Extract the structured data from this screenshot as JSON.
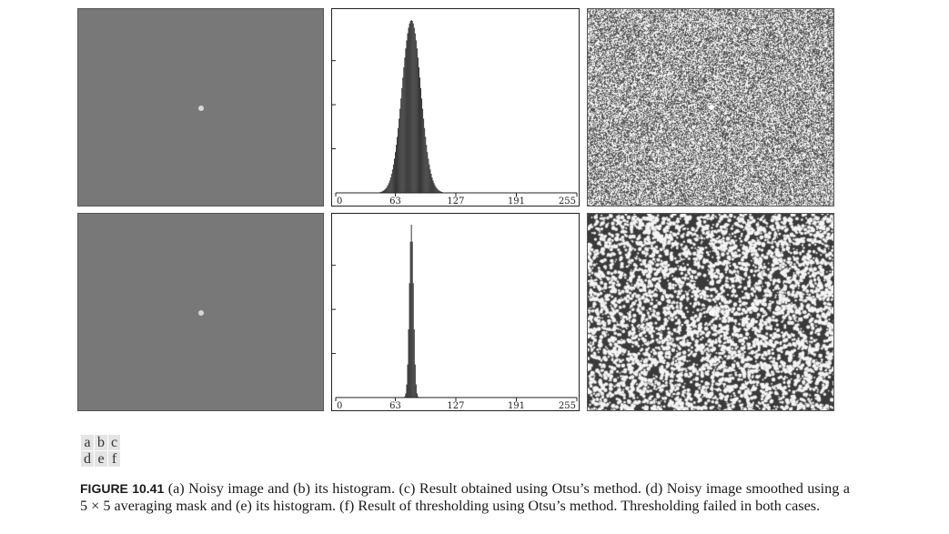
{
  "panels": {
    "a": {
      "label": "a",
      "content": "noisy image"
    },
    "b": {
      "label": "b",
      "content": "histogram of noisy image"
    },
    "c": {
      "label": "c",
      "content": "Otsu thresholding result"
    },
    "d": {
      "label": "d",
      "content": "smoothed noisy image"
    },
    "e": {
      "label": "e",
      "content": "histogram of smoothed image"
    },
    "f": {
      "label": "f",
      "content": "Otsu thresholding result on smoothed image"
    }
  },
  "layout_grid": {
    "row1": [
      "a",
      "b",
      "c"
    ],
    "row2": [
      "d",
      "e",
      "f"
    ]
  },
  "colors": {
    "image_gray": "#787878",
    "bars": "#222222"
  },
  "chart_data": [
    {
      "type": "bar",
      "panel": "b",
      "xlim": [
        0,
        255
      ],
      "xticks": [
        "0",
        "63",
        "127",
        "191",
        "255"
      ],
      "distribution": {
        "shape": "gaussian",
        "mean": 80,
        "stddev": 10,
        "peak": 1.0
      }
    },
    {
      "type": "bar",
      "panel": "e",
      "xlim": [
        0,
        255
      ],
      "xticks": [
        "0",
        "63",
        "127",
        "191",
        "255"
      ],
      "distribution": {
        "shape": "gaussian",
        "mean": 80,
        "stddev": 2.2,
        "peak": 1.0
      }
    }
  ],
  "caption": {
    "figure_number": "FIGURE 10.41",
    "text": "(a) Noisy image and (b) its histogram. (c) Result obtained using Otsu’s method. (d) Noisy image smoothed using a 5 × 5 averaging mask and (e) its histogram. (f) Result of thresholding using Otsu’s method. Thresholding failed in both cases."
  }
}
